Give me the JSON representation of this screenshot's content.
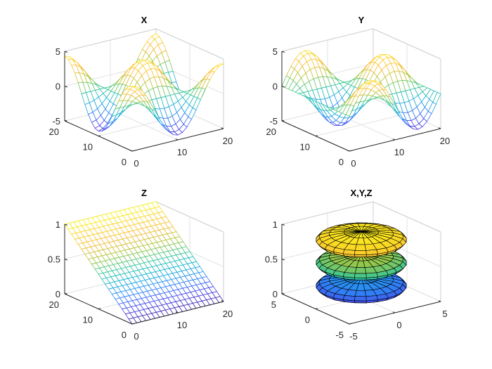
{
  "figure": {
    "background": "#ffffff"
  },
  "colormap": "parula",
  "chart_data": [
    {
      "type": "mesh",
      "title": "X",
      "grid_points": 21,
      "xlim": [
        0,
        20
      ],
      "ylim": [
        0,
        20
      ],
      "zlim": [
        -5,
        5
      ],
      "xticks": [
        "0",
        "10",
        "20"
      ],
      "yticks": [
        "0",
        "10",
        "20"
      ],
      "zticks": [
        "-5",
        "0",
        "5"
      ],
      "xtick_values": [
        0,
        10,
        20
      ],
      "ytick_values": [
        0,
        10,
        20
      ],
      "ztick_values": [
        -5,
        0,
        5
      ],
      "surface": {
        "form": "cos-cos",
        "amplitude": 4.3,
        "period": 20
      }
    },
    {
      "type": "mesh",
      "title": "Y",
      "grid_points": 21,
      "xlim": [
        0,
        20
      ],
      "ylim": [
        0,
        20
      ],
      "zlim": [
        -5,
        5
      ],
      "xticks": [
        "0",
        "10",
        "20"
      ],
      "yticks": [
        "0",
        "10",
        "20"
      ],
      "zticks": [
        "-5",
        "0",
        "5"
      ],
      "xtick_values": [
        0,
        10,
        20
      ],
      "ytick_values": [
        0,
        10,
        20
      ],
      "ztick_values": [
        -5,
        0,
        5
      ],
      "surface": {
        "form": "sin-cos",
        "amplitude": 4.3,
        "period": 20
      }
    },
    {
      "type": "mesh",
      "title": "Z",
      "grid_points": 21,
      "xlim": [
        0,
        20
      ],
      "ylim": [
        0,
        20
      ],
      "zlim": [
        0,
        1
      ],
      "xticks": [
        "0",
        "10",
        "20"
      ],
      "yticks": [
        "0",
        "10",
        "20"
      ],
      "zticks": [
        "0",
        "0.5",
        "1"
      ],
      "xtick_values": [
        0,
        10,
        20
      ],
      "ytick_values": [
        0,
        10,
        20
      ],
      "ztick_values": [
        0,
        0.5,
        1
      ],
      "surface": {
        "form": "plane-y",
        "amplitude": 1,
        "period": 20
      }
    },
    {
      "type": "surface",
      "title": "X,Y,Z",
      "xlim": [
        -5,
        5
      ],
      "ylim": [
        -5,
        5
      ],
      "zlim": [
        0,
        1
      ],
      "xticks": [
        "-5",
        "0",
        "5"
      ],
      "yticks": [
        "-5",
        "0",
        "5"
      ],
      "zticks": [
        "0",
        "0.5",
        "1"
      ],
      "xtick_values": [
        -5,
        0,
        5
      ],
      "ytick_values": [
        -5,
        0,
        5
      ],
      "ztick_values": [
        0,
        0.5,
        1
      ],
      "discs": [
        {
          "z_center": 0.17,
          "radius": 4
        },
        {
          "z_center": 0.5,
          "radius": 4
        },
        {
          "z_center": 0.83,
          "radius": 4
        }
      ],
      "edge_color": "#000000"
    }
  ]
}
